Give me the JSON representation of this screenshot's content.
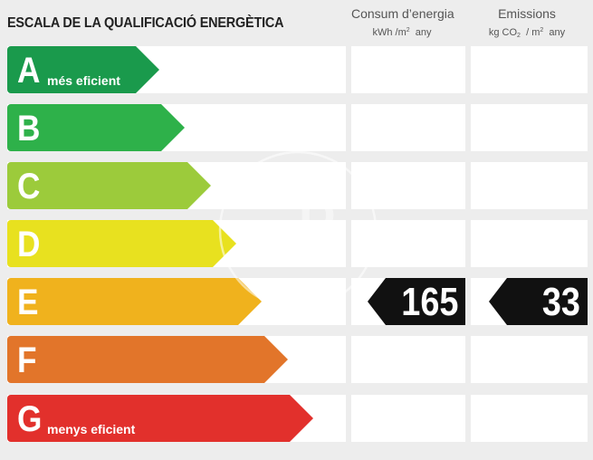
{
  "title": "ESCALA DE LA QUALIFICACIÓ ENERGÈTICA",
  "columns": {
    "consum": {
      "label": "Consum d’energia",
      "unit_prefix": "kWh /m",
      "unit_sup": "2",
      "unit_suffix": "any"
    },
    "emissions": {
      "label": "Emissions",
      "unit_prefix": "kg CO",
      "unit_sub": "2",
      "unit_mid": "/ m",
      "unit_sup": "2",
      "unit_suffix": "any"
    }
  },
  "ratings": [
    {
      "letter": "A",
      "note": "més eficient",
      "color": "#1a9a4c"
    },
    {
      "letter": "B",
      "note": "",
      "color": "#2eb14a"
    },
    {
      "letter": "C",
      "note": "",
      "color": "#9ccb3b"
    },
    {
      "letter": "D",
      "note": "",
      "color": "#e8e11f"
    },
    {
      "letter": "E",
      "note": "",
      "color": "#f0b21d"
    },
    {
      "letter": "F",
      "note": "",
      "color": "#e2752a"
    },
    {
      "letter": "G",
      "note": "menys eficient",
      "color": "#e2302c"
    }
  ],
  "current_rating": "E",
  "consum_value": "165",
  "emissions_value": "33",
  "watermark_icon": "ap-logo-watermark"
}
